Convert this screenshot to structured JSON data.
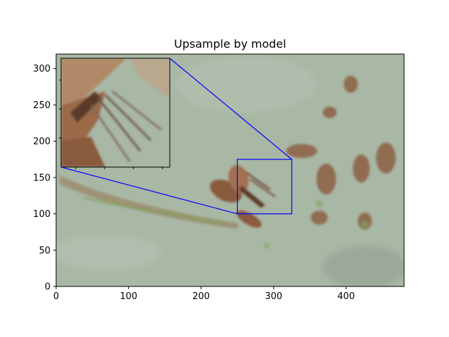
{
  "chart_data": {
    "type": "image",
    "title": "Upsample by model",
    "xlabel": "",
    "ylabel": "",
    "xlim": [
      0,
      480
    ],
    "ylim": [
      0,
      320
    ],
    "x_ticks": [
      0,
      100,
      200,
      300,
      400
    ],
    "y_ticks": [
      0,
      50,
      100,
      150,
      200,
      250,
      300
    ],
    "x_tick_labels": [
      "0",
      "100",
      "200",
      "300",
      "400"
    ],
    "y_tick_labels": [
      "0",
      "50",
      "100",
      "150",
      "200",
      "250",
      "300"
    ],
    "zoom_region": {
      "x": [
        250,
        325
      ],
      "y": [
        100,
        175
      ]
    },
    "inset_xlim": [
      250,
      325
    ],
    "inset_ylim": [
      100,
      175
    ],
    "connector_color": "#0000ff",
    "grid": false,
    "image_description_colors": {
      "background": "#a9b7a5",
      "bird_brown": "#8a5a3c",
      "bird_light": "#c7a98a",
      "dark_streak": "#5a3a2a",
      "grass_green": "#7ea55e"
    }
  }
}
